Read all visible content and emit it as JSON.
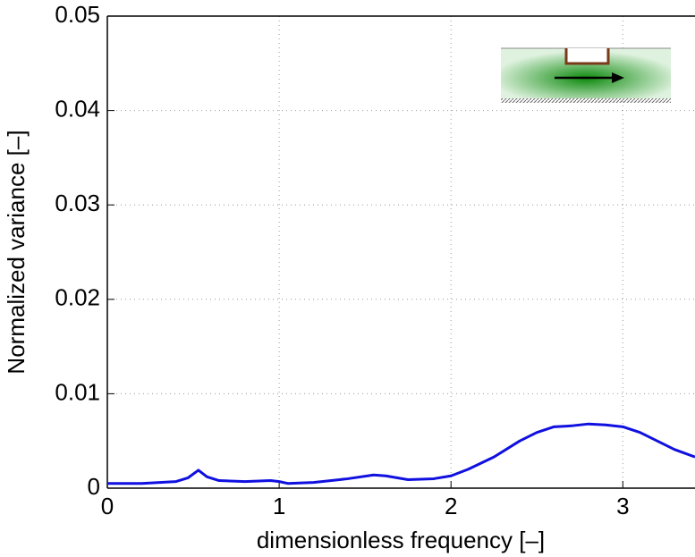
{
  "chart_data": {
    "type": "line",
    "xlabel": "dimensionless frequency [–]",
    "ylabel": "Normalized variance [–]",
    "x": [
      0,
      0.2,
      0.4,
      0.47,
      0.53,
      0.58,
      0.65,
      0.8,
      0.95,
      1.0,
      1.05,
      1.2,
      1.4,
      1.55,
      1.62,
      1.75,
      1.9,
      2.0,
      2.1,
      2.25,
      2.4,
      2.5,
      2.6,
      2.7,
      2.8,
      2.9,
      3.0,
      3.1,
      3.2,
      3.3,
      3.42
    ],
    "values": [
      0.0005,
      0.0005,
      0.0007,
      0.0011,
      0.0019,
      0.0012,
      0.0008,
      0.0007,
      0.0008,
      0.0007,
      0.0005,
      0.0006,
      0.001,
      0.0014,
      0.0013,
      0.0009,
      0.001,
      0.0013,
      0.002,
      0.0033,
      0.005,
      0.0059,
      0.0065,
      0.0066,
      0.0068,
      0.0067,
      0.0065,
      0.0059,
      0.005,
      0.0041,
      0.0033
    ],
    "color": "#1010e0",
    "xlim": [
      0,
      3.42
    ],
    "ylim": [
      0,
      0.05
    ],
    "xticks": [
      0,
      1,
      2,
      3
    ],
    "yticks": [
      0,
      0.01,
      0.02,
      0.03,
      0.04,
      0.05
    ],
    "grid": true
  }
}
